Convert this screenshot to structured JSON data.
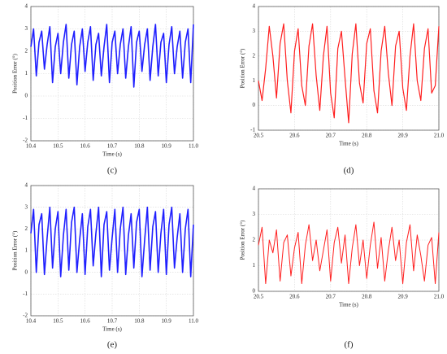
{
  "chart_data": [
    {
      "type": "line",
      "caption": "(c)",
      "xlabel": "Time (s)",
      "ylabel": "Position Error (°)",
      "color": "#1f1fff",
      "xlim": [
        10.4,
        11
      ],
      "xticks": [
        10.4,
        10.5,
        10.6,
        10.7,
        10.8,
        10.9,
        {
          "value": 11,
          "label": "11.0"
        }
      ],
      "ylim": [
        -2,
        4
      ],
      "yticks": [
        -2,
        -1,
        0,
        1,
        2,
        3,
        4
      ],
      "grid": true,
      "x": [
        10.4,
        10.41,
        10.42,
        10.43,
        10.44,
        10.45,
        10.46,
        10.47,
        10.48,
        10.49,
        10.5,
        10.51,
        10.52,
        10.53,
        10.54,
        10.55,
        10.56,
        10.57,
        10.58,
        10.59,
        10.6,
        10.61,
        10.62,
        10.63,
        10.64,
        10.65,
        10.66,
        10.67,
        10.68,
        10.69,
        10.7,
        10.71,
        10.72,
        10.73,
        10.74,
        10.75,
        10.76,
        10.77,
        10.78,
        10.79,
        10.8,
        10.81,
        10.82,
        10.83,
        10.84,
        10.85,
        10.86,
        10.87,
        10.88,
        10.89,
        10.9,
        10.91,
        10.92,
        10.93,
        10.94,
        10.95,
        10.96,
        10.97,
        10.98,
        10.99,
        11
      ],
      "values": [
        2.2,
        3.0,
        0.9,
        2.4,
        2.9,
        1.2,
        2.3,
        3.1,
        0.6,
        2.2,
        2.8,
        1.0,
        2.4,
        3.2,
        0.8,
        2.3,
        2.9,
        0.5,
        2.2,
        3.0,
        1.1,
        2.4,
        3.1,
        0.7,
        2.3,
        2.8,
        0.9,
        2.2,
        3.2,
        0.6,
        2.4,
        2.9,
        1.0,
        2.3,
        3.0,
        0.8,
        2.2,
        3.1,
        0.4,
        2.4,
        2.9,
        1.1,
        2.3,
        3.0,
        0.7,
        2.2,
        3.2,
        0.9,
        2.4,
        2.8,
        0.6,
        2.3,
        3.1,
        1.0,
        2.2,
        2.9,
        0.8,
        2.4,
        3.0,
        0.6,
        3.2
      ]
    },
    {
      "type": "line",
      "caption": "(d)",
      "xlabel": "Time (s)",
      "ylabel": "Position Error (°)",
      "color": "#ff1f1f",
      "xlim": [
        20.5,
        21
      ],
      "xticks": [
        20.5,
        20.6,
        20.7,
        20.8,
        20.9,
        {
          "value": 21,
          "label": "21.0"
        }
      ],
      "ylim": [
        -1,
        4
      ],
      "yticks": [
        -1,
        0,
        1,
        2,
        3,
        4
      ],
      "grid": true,
      "x": [
        20.5,
        20.51,
        20.52,
        20.53,
        20.54,
        20.55,
        20.56,
        20.57,
        20.58,
        20.59,
        20.6,
        20.61,
        20.62,
        20.63,
        20.64,
        20.65,
        20.66,
        20.67,
        20.68,
        20.69,
        20.7,
        20.71,
        20.72,
        20.73,
        20.74,
        20.75,
        20.76,
        20.77,
        20.78,
        20.79,
        20.8,
        20.81,
        20.82,
        20.83,
        20.84,
        20.85,
        20.86,
        20.87,
        20.88,
        20.89,
        20.9,
        20.91,
        20.92,
        20.93,
        20.94,
        20.95,
        20.96,
        20.97,
        20.98,
        20.99,
        21
      ],
      "values": [
        1.0,
        0.2,
        1.5,
        3.2,
        2.0,
        0.3,
        2.5,
        3.3,
        1.0,
        -0.3,
        2.2,
        3.1,
        0.8,
        0.0,
        2.4,
        3.3,
        1.2,
        -0.2,
        2.0,
        3.2,
        0.5,
        -0.5,
        2.3,
        3.0,
        1.1,
        -0.7,
        2.1,
        3.3,
        0.9,
        0.1,
        2.5,
        3.1,
        0.6,
        -0.3,
        2.2,
        3.2,
        1.3,
        0.0,
        2.4,
        3.0,
        0.7,
        -0.2,
        2.0,
        3.3,
        1.0,
        0.2,
        2.3,
        3.1,
        0.5,
        0.8,
        3.2
      ]
    },
    {
      "type": "line",
      "caption": "(e)",
      "xlabel": "Time (s)",
      "ylabel": "Position Error (°)",
      "color": "#1f1fff",
      "xlim": [
        10.4,
        11
      ],
      "xticks": [
        10.4,
        10.5,
        10.6,
        10.7,
        10.8,
        10.9,
        {
          "value": 11,
          "label": "11.0"
        }
      ],
      "ylim": [
        -2,
        4
      ],
      "yticks": [
        -2,
        -1,
        0,
        1,
        2,
        3,
        4
      ],
      "grid": true,
      "x": [
        10.4,
        10.41,
        10.42,
        10.43,
        10.44,
        10.45,
        10.46,
        10.47,
        10.48,
        10.49,
        10.5,
        10.51,
        10.52,
        10.53,
        10.54,
        10.55,
        10.56,
        10.57,
        10.58,
        10.59,
        10.6,
        10.61,
        10.62,
        10.63,
        10.64,
        10.65,
        10.66,
        10.67,
        10.68,
        10.69,
        10.7,
        10.71,
        10.72,
        10.73,
        10.74,
        10.75,
        10.76,
        10.77,
        10.78,
        10.79,
        10.8,
        10.81,
        10.82,
        10.83,
        10.84,
        10.85,
        10.86,
        10.87,
        10.88,
        10.89,
        10.9,
        10.91,
        10.92,
        10.93,
        10.94,
        10.95,
        10.96,
        10.97,
        10.98,
        10.99,
        11
      ],
      "values": [
        1.8,
        2.9,
        0.0,
        2.2,
        2.7,
        -0.1,
        1.6,
        3.0,
        0.2,
        2.0,
        2.8,
        -0.2,
        1.7,
        2.9,
        0.1,
        2.3,
        3.0,
        0.0,
        1.5,
        2.7,
        -0.1,
        2.1,
        2.9,
        0.3,
        1.8,
        3.0,
        -0.2,
        2.2,
        2.8,
        0.1,
        1.6,
        2.9,
        0.0,
        2.0,
        3.0,
        -0.1,
        1.7,
        2.7,
        0.2,
        2.3,
        2.9,
        -0.2,
        1.5,
        3.0,
        0.1,
        2.1,
        2.8,
        0.0,
        1.8,
        2.9,
        -0.1,
        2.2,
        3.0,
        0.2,
        1.6,
        2.7,
        0.0,
        2.0,
        2.9,
        -0.2,
        2.2
      ]
    },
    {
      "type": "line",
      "caption": "(f)",
      "xlabel": "Time (s)",
      "ylabel": "Position Error (°)",
      "color": "#ff1f1f",
      "xlim": [
        20.5,
        21
      ],
      "xticks": [
        20.5,
        20.6,
        20.7,
        20.8,
        20.9,
        {
          "value": 21,
          "label": "21.0"
        }
      ],
      "ylim": [
        0,
        4
      ],
      "yticks": [
        0,
        1,
        2,
        3,
        4
      ],
      "grid": true,
      "x": [
        20.5,
        20.51,
        20.52,
        20.53,
        20.54,
        20.55,
        20.56,
        20.57,
        20.58,
        20.59,
        20.6,
        20.61,
        20.62,
        20.63,
        20.64,
        20.65,
        20.66,
        20.67,
        20.68,
        20.69,
        20.7,
        20.71,
        20.72,
        20.73,
        20.74,
        20.75,
        20.76,
        20.77,
        20.78,
        20.79,
        20.8,
        20.81,
        20.82,
        20.83,
        20.84,
        20.85,
        20.86,
        20.87,
        20.88,
        20.89,
        20.9,
        20.91,
        20.92,
        20.93,
        20.94,
        20.95,
        20.96,
        20.97,
        20.98,
        20.99,
        21
      ],
      "values": [
        1.8,
        2.5,
        0.3,
        2.0,
        1.5,
        2.4,
        0.4,
        1.9,
        2.2,
        0.6,
        1.7,
        2.3,
        0.3,
        1.8,
        2.6,
        1.2,
        2.0,
        0.8,
        1.6,
        2.4,
        0.4,
        1.9,
        2.5,
        1.1,
        2.2,
        0.3,
        1.7,
        2.6,
        1.0,
        2.0,
        0.5,
        1.8,
        2.7,
        0.9,
        2.1,
        0.4,
        1.6,
        2.5,
        1.2,
        2.0,
        0.3,
        1.9,
        2.6,
        0.8,
        2.2,
        1.4,
        0.4,
        1.8,
        2.1,
        0.3,
        2.3
      ]
    }
  ]
}
